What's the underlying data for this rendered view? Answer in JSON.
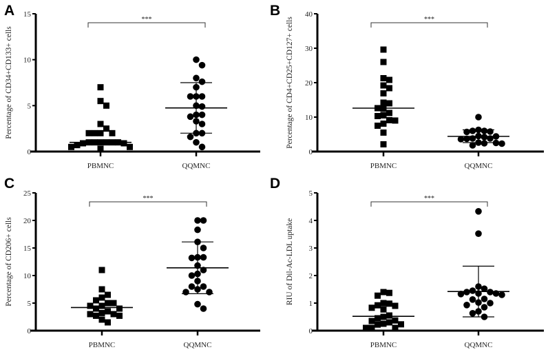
{
  "chart_data": [
    {
      "panel": "A",
      "type": "scatter",
      "ylabel": "Percentage of CD34+CD133+ cells",
      "categories": [
        "PBMNC",
        "QQMNC"
      ],
      "ylim": [
        0,
        15
      ],
      "yticks": [
        "0",
        "5",
        "10",
        "15"
      ],
      "significance": "***",
      "series": [
        {
          "name": "PBMNC",
          "marker": "square",
          "values": [
            7,
            5.5,
            5,
            3,
            2.5,
            2,
            2,
            2,
            2,
            1,
            1,
            1,
            1,
            1,
            1,
            0.9,
            0.9,
            0.7,
            0.5,
            0.5,
            0.3
          ],
          "mean": 1.0
        },
        {
          "name": "QQMNC",
          "marker": "circle",
          "values": [
            10,
            9.4,
            8,
            7.6,
            7,
            6,
            6,
            6,
            5,
            4.9,
            4,
            4,
            3.8,
            3.3,
            3,
            2,
            2,
            1.6,
            1,
            0.5
          ],
          "mean": 4.75,
          "error": [
            2.0,
            7.5
          ]
        }
      ]
    },
    {
      "panel": "B",
      "type": "scatter",
      "ylabel": "Percentage of CD4+CD25+CD127+ cells",
      "categories": [
        "PBMNC",
        "QQMNC"
      ],
      "ylim": [
        0,
        40
      ],
      "yticks": [
        "0",
        "10",
        "20",
        "30",
        "40"
      ],
      "significance": "***",
      "series": [
        {
          "name": "PBMNC",
          "marker": "square",
          "values": [
            29.6,
            26,
            21.3,
            20.8,
            19.2,
            18.4,
            16.9,
            14.2,
            14,
            12.6,
            12.4,
            11.2,
            10.5,
            10.3,
            9.1,
            9,
            8.1,
            7.5,
            5.5,
            2.1
          ],
          "mean": 12.6
        },
        {
          "name": "QQMNC",
          "marker": "circle",
          "values": [
            10,
            6.3,
            6,
            6,
            5.8,
            5.7,
            4.5,
            4.4,
            4.2,
            3.8,
            3.8,
            3.7,
            3.6,
            2.6,
            2.5,
            2.4,
            2.3,
            1.8
          ],
          "mean": 4.4,
          "error": [
            2.6,
            6.3
          ]
        }
      ]
    },
    {
      "panel": "C",
      "type": "scatter",
      "ylabel": "Percentage of CD206+ cells",
      "categories": [
        "PBMNC",
        "QQMNC"
      ],
      "ylim": [
        0,
        25
      ],
      "yticks": [
        "0",
        "5",
        "10",
        "15",
        "20",
        "25"
      ],
      "significance": "***",
      "series": [
        {
          "name": "PBMNC",
          "marker": "square",
          "values": [
            11,
            7.5,
            6.5,
            6,
            5.5,
            5,
            5,
            4.5,
            4.5,
            4,
            4,
            3.5,
            3.2,
            3,
            3,
            2.7,
            2.7,
            2,
            1.5
          ],
          "mean": 4.2
        },
        {
          "name": "QQMNC",
          "marker": "circle",
          "values": [
            20,
            20,
            18.3,
            16.1,
            15,
            13.3,
            13.3,
            13.2,
            11.8,
            11,
            10.3,
            10,
            9,
            8,
            8,
            7.5,
            7,
            7,
            4.8,
            4
          ],
          "mean": 11.4,
          "error": [
            6.7,
            16.1
          ]
        }
      ]
    },
    {
      "panel": "D",
      "type": "scatter",
      "ylabel": "RIU of Dil-Ac-LDL  uptake",
      "categories": [
        "PBMNC",
        "QQMNC"
      ],
      "ylim": [
        0,
        5
      ],
      "yticks": [
        "0",
        "1",
        "2",
        "3",
        "4",
        "5"
      ],
      "significance": "***",
      "series": [
        {
          "name": "PBMNC",
          "marker": "square",
          "values": [
            1.4,
            1.37,
            1.27,
            1.0,
            0.98,
            0.92,
            0.9,
            0.83,
            0.77,
            0.55,
            0.5,
            0.45,
            0.37,
            0.35,
            0.3,
            0.25,
            0.23,
            0.22,
            0.1,
            0.1,
            0.1
          ],
          "mean": 0.52
        },
        {
          "name": "QQMNC",
          "marker": "circle",
          "values": [
            4.33,
            3.52,
            1.6,
            1.52,
            1.45,
            1.4,
            1.4,
            1.35,
            1.35,
            1.33,
            1.3,
            1.15,
            1.13,
            1.02,
            1.0,
            0.93,
            0.85,
            0.7,
            0.63,
            0.5
          ],
          "mean": 1.42,
          "error": [
            0.5,
            2.34
          ]
        }
      ]
    }
  ]
}
